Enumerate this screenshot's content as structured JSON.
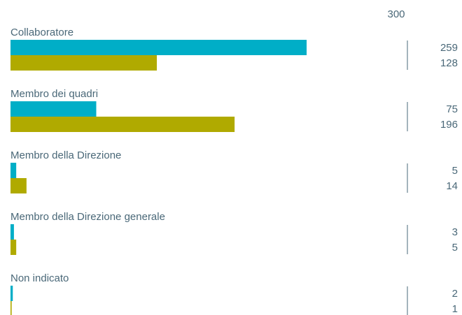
{
  "chart_data": {
    "type": "bar",
    "orientation": "horizontal",
    "axis_max_label": "300",
    "xlim": [
      0,
      300
    ],
    "categories": [
      "Collaboratore",
      "Membro dei quadri",
      "Membro della Direzione",
      "Membro della Direzione generale",
      "Non indicato"
    ],
    "series": [
      {
        "values": [
          259,
          75,
          5,
          3,
          2
        ],
        "color": "#00aec7"
      },
      {
        "values": [
          128,
          196,
          14,
          5,
          1
        ],
        "color": "#b0aa00"
      }
    ],
    "grid": false,
    "legend": "none"
  }
}
